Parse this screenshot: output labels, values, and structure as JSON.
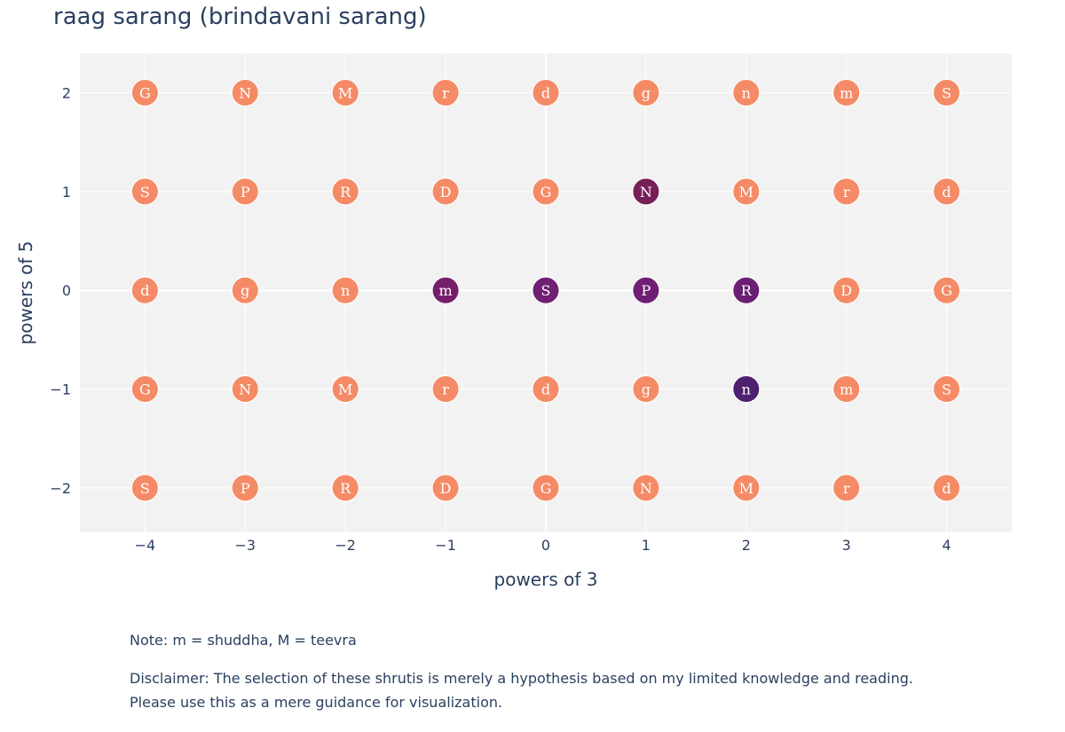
{
  "chart_data": {
    "type": "scatter",
    "title": "raag sarang (brindavani sarang)",
    "xlabel": "powers of 3",
    "ylabel": "powers of 5",
    "xlim": [
      -4.65,
      4.65
    ],
    "ylim": [
      -2.45,
      2.4
    ],
    "x_ticks": [
      -4,
      -3,
      -2,
      -1,
      0,
      1,
      2,
      3,
      4
    ],
    "y_ticks": [
      -2,
      -1,
      0,
      1,
      2
    ],
    "x_tick_labels": [
      "−4",
      "−3",
      "−2",
      "−1",
      "0",
      "1",
      "2",
      "3",
      "4"
    ],
    "y_tick_labels": [
      "−2",
      "−1",
      "0",
      "1",
      "2"
    ],
    "grid": true,
    "colors": {
      "background": "#f2f2f2",
      "grid": "#ffffff",
      "default_note": "#f48b66",
      "selected_N": "#771f58",
      "selected_m": "#751f6a",
      "selected_S": "#701f73",
      "selected_P": "#6f1f73",
      "selected_R": "#6b1f74",
      "selected_n": "#4d2070"
    },
    "rows": [
      {
        "y": 2,
        "labels": [
          "G",
          "N",
          "M",
          "r",
          "d",
          "g",
          "n",
          "m",
          "S"
        ]
      },
      {
        "y": 1,
        "labels": [
          "S",
          "P",
          "R",
          "D",
          "G",
          "N",
          "M",
          "r",
          "d"
        ]
      },
      {
        "y": 0,
        "labels": [
          "d",
          "g",
          "n",
          "m",
          "S",
          "P",
          "R",
          "D",
          "G"
        ]
      },
      {
        "y": -1,
        "labels": [
          "G",
          "N",
          "M",
          "r",
          "d",
          "g",
          "n",
          "m",
          "S"
        ]
      },
      {
        "y": -2,
        "labels": [
          "S",
          "P",
          "R",
          "D",
          "G",
          "N",
          "M",
          "r",
          "d"
        ]
      }
    ],
    "selected": [
      {
        "x": 1,
        "y": 1,
        "color": "#771f58"
      },
      {
        "x": -1,
        "y": 0,
        "color": "#751f6a"
      },
      {
        "x": 0,
        "y": 0,
        "color": "#701f73"
      },
      {
        "x": 1,
        "y": 0,
        "color": "#6f1f73"
      },
      {
        "x": 2,
        "y": 0,
        "color": "#6b1f74"
      },
      {
        "x": 2,
        "y": -1,
        "color": "#4d2070"
      }
    ]
  },
  "notes": {
    "note": "Note: m = shuddha, M = teevra",
    "disclaimer_line1": "Disclaimer: The selection of these shrutis is merely a hypothesis based on my limited knowledge and reading.",
    "disclaimer_line2": "Please use this as a mere guidance for visualization."
  }
}
